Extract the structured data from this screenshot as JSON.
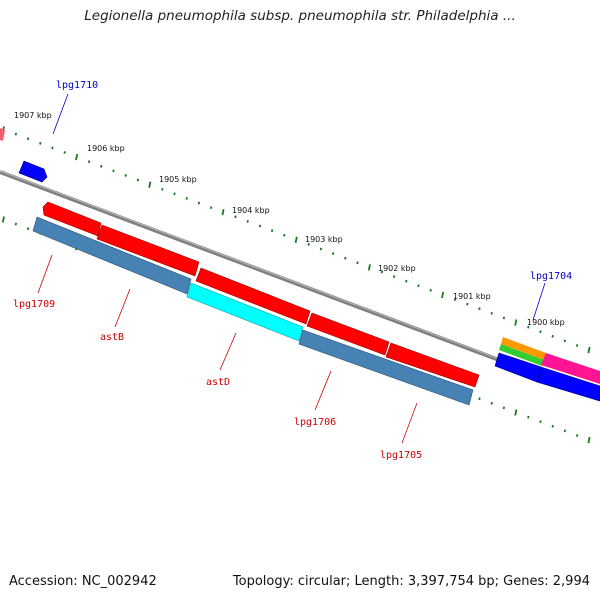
{
  "title": "Legionella pneumophila subsp. pneumophila str. Philadelphia ...",
  "footer": {
    "accession": "Accession: NC_002942",
    "topology": "Topology: circular; Length: 3,397,754 bp; Genes: 2,994"
  },
  "kbp_labels": [
    "1907 kbp",
    "1906 kbp",
    "1905 kbp",
    "1904 kbp",
    "1903 kbp",
    "1902 kbp",
    "1901 kbp",
    "1900 kbp"
  ],
  "top_genes": [
    "lpg1710",
    "lpg1704"
  ],
  "bottom_genes": [
    "lpg1709",
    "astB",
    "astD",
    "lpg1706",
    "lpg1705"
  ],
  "colors": {
    "forward_link": "#0000cc",
    "reverse_link": "#cc0000",
    "backbone": "#808080",
    "tick": "#1a7a1a",
    "cds": "#ff0000",
    "steelblue": "#4682b4",
    "cyan": "#00ffff",
    "blue": "#0000ff",
    "orange": "#ff9900",
    "green": "#33cc33",
    "pink": "#ff1493"
  }
}
